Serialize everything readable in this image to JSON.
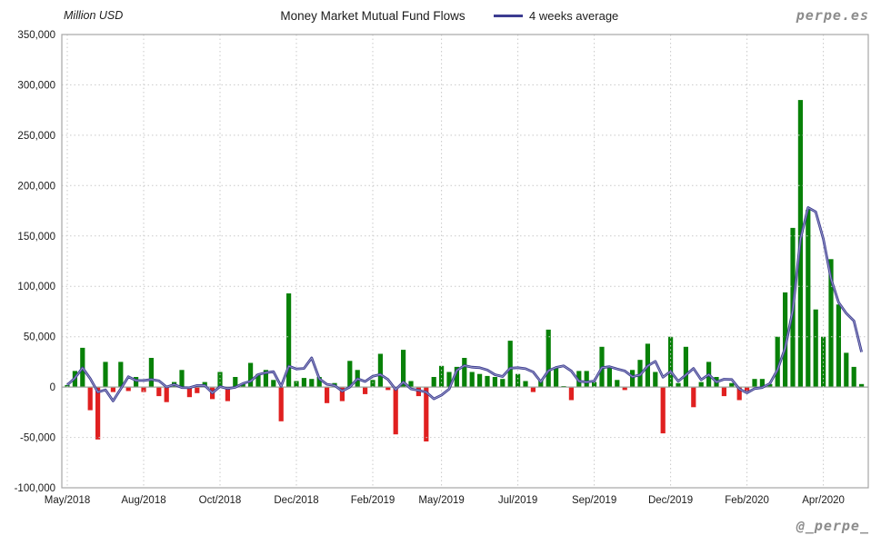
{
  "header": {
    "unit": "Million USD",
    "title": "Money Market Mutual Fund Flows",
    "legend": "4 weeks average",
    "watermark": "perpe.es"
  },
  "footer": {
    "watermark": "@_perpe_"
  },
  "chart_data": {
    "type": "bar",
    "title": "Money Market Mutual Fund Flows",
    "ylabel": "Million USD",
    "legend": [
      {
        "name": "4 weeks average",
        "type": "line"
      }
    ],
    "ylim": [
      -100000,
      350000
    ],
    "grid": true,
    "yticks": [
      {
        "v": 350000,
        "label": "350,000"
      },
      {
        "v": 300000,
        "label": "300,000"
      },
      {
        "v": 250000,
        "label": "250,000"
      },
      {
        "v": 200000,
        "label": "200,000"
      },
      {
        "v": 150000,
        "label": "150,000"
      },
      {
        "v": 100000,
        "label": "100,000"
      },
      {
        "v": 50000,
        "label": "50,000"
      },
      {
        "v": 0,
        "label": "0"
      },
      {
        "v": -50000,
        "label": "-50,000"
      },
      {
        "v": -100000,
        "label": "-100,000"
      }
    ],
    "x_ticks": [
      {
        "label": "May/2018",
        "week": 0
      },
      {
        "label": "Aug/2018",
        "week": 10
      },
      {
        "label": "Oct/2018",
        "week": 20
      },
      {
        "label": "Dec/2018",
        "week": 30
      },
      {
        "label": "Feb/2019",
        "week": 40
      },
      {
        "label": "May/2019",
        "week": 49
      },
      {
        "label": "Jul/2019",
        "week": 59
      },
      {
        "label": "Sep/2019",
        "week": 69
      },
      {
        "label": "Dec/2019",
        "week": 79
      },
      {
        "label": "Feb/2020",
        "week": 89
      },
      {
        "label": "Apr/2020",
        "week": 99
      }
    ],
    "series_note": "weekly money market mutual fund flows, Million USD; line = trailing 4 week average of the bars",
    "values": [
      2000,
      16000,
      39000,
      -23000,
      -52000,
      25000,
      -5000,
      25000,
      -4000,
      10000,
      -5000,
      29000,
      -9000,
      -15000,
      5000,
      17000,
      -10000,
      -6000,
      5000,
      -12000,
      15000,
      -14000,
      10000,
      3000,
      24000,
      13000,
      17000,
      7000,
      -34000,
      93000,
      6000,
      9000,
      8000,
      10000,
      -16000,
      4000,
      -14000,
      26000,
      17000,
      -7000,
      7000,
      33000,
      -3000,
      -47000,
      37000,
      6000,
      -9000,
      -54000,
      10000,
      21000,
      15000,
      20000,
      29000,
      15000,
      13000,
      11000,
      10000,
      8000,
      46000,
      13000,
      6000,
      -5000,
      7000,
      57000,
      19000,
      1000,
      -13000,
      16000,
      16000,
      5000,
      40000,
      20000,
      7000,
      -3000,
      17000,
      27000,
      43000,
      15000,
      -46000,
      50000,
      4000,
      40000,
      -20000,
      5000,
      25000,
      10000,
      -9000,
      4000,
      -13000,
      -5000,
      8000,
      8000,
      3000,
      50000,
      94000,
      158000,
      285000,
      176000,
      77000,
      50000,
      127000,
      82000,
      34000,
      20000,
      3000
    ],
    "colors": {
      "positive_bar": "#088108",
      "negative_bar": "#e02020",
      "line": "#3c3c91",
      "line_core": "#9898c6",
      "grid": "#c9c9c9",
      "border": "#a6a6a6",
      "zero_line": "#9ea59e",
      "text": "#1b1b1b"
    }
  }
}
